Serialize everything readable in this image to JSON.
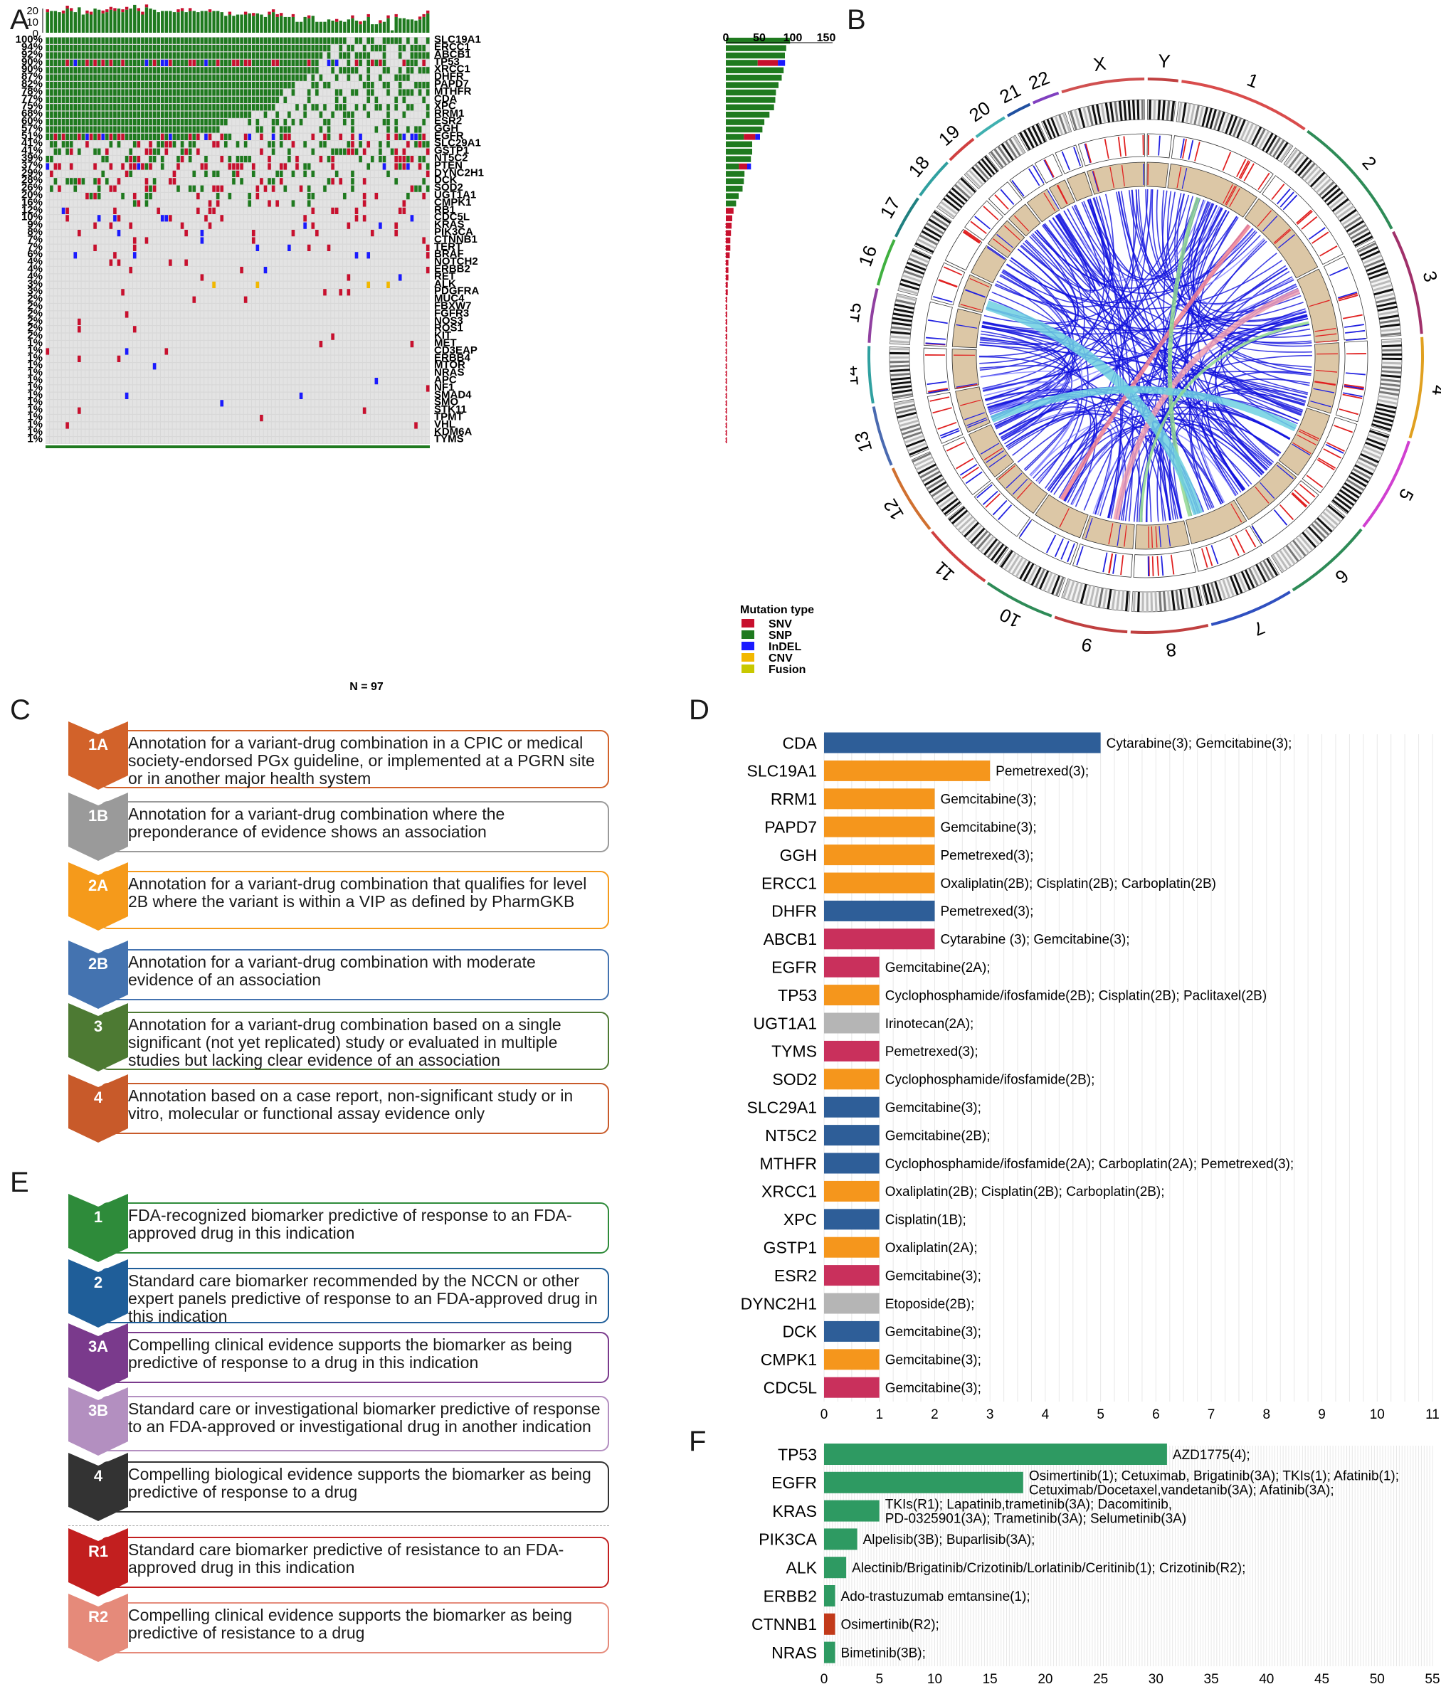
{
  "panels": {
    "A": "A",
    "B": "B",
    "C": "C",
    "D": "D",
    "E": "E",
    "F": "F"
  },
  "panelA": {
    "genes": [
      "SLC19A1",
      "ERCC1",
      "ABCB1",
      "TP53",
      "XRCC1",
      "DHFR",
      "PAPD7",
      "MTHFR",
      "CDA",
      "XPC",
      "RRM1",
      "ESR2",
      "GGH",
      "EGFR",
      "SLC29A1",
      "GSTP1",
      "NT5C2",
      "PTEN",
      "DYNC2H1",
      "DCK",
      "SOD2",
      "UGT1A1",
      "CMPK1",
      "RB1",
      "CDC5L",
      "KRAS",
      "PIK3CA",
      "CTNNB1",
      "TERT",
      "BRAF",
      "NOTCH2",
      "ERBB2",
      "RET",
      "ALK",
      "PDGFRA",
      "MUC4",
      "FBXW7",
      "FGFR3",
      "NOS3",
      "ROS1",
      "KIT",
      "MET",
      "CD3EAP",
      "ERBB4",
      "MTOR",
      "NRAS",
      "APC",
      "NF1",
      "SMAD4",
      "SMO",
      "STK11",
      "TPMT",
      "VHL",
      "KDM6A",
      "TYMS"
    ],
    "percents": [
      "100%",
      "94%",
      "92%",
      "90%",
      "90%",
      "87%",
      "82%",
      "78%",
      "77%",
      "75%",
      "68%",
      "60%",
      "57%",
      "51%",
      "41%",
      "41%",
      "39%",
      "37%",
      "29%",
      "28%",
      "26%",
      "20%",
      "16%",
      "12%",
      "10%",
      "9%",
      "8%",
      "7%",
      "7%",
      "6%",
      "4%",
      "4%",
      "4%",
      "3%",
      "3%",
      "2%",
      "2%",
      "2%",
      "2%",
      "2%",
      "2%",
      "1%",
      "1%",
      "1%",
      "1%",
      "1%",
      "1%",
      "1%",
      "1%",
      "1%",
      "1%",
      "1%",
      "1%",
      "1%",
      "1%"
    ],
    "top_ticks": [
      "20",
      "10",
      "0"
    ],
    "right_ticks": [
      "0",
      "50",
      "100",
      "150"
    ],
    "n_label": "N = 97",
    "legend_title": "Mutation type",
    "legend": [
      {
        "label": "SNV",
        "color": "#c8102e"
      },
      {
        "label": "SNP",
        "color": "#1f7a1f"
      },
      {
        "label": "InDEL",
        "color": "#1a1aff"
      },
      {
        "label": "CNV",
        "color": "#f2b800"
      },
      {
        "label": "Fusion",
        "color": "#c8c800"
      }
    ]
  },
  "panelB": {
    "chromosomes": [
      "1",
      "2",
      "3",
      "4",
      "5",
      "6",
      "7",
      "8",
      "9",
      "10",
      "11",
      "12",
      "13",
      "14",
      "15",
      "16",
      "17",
      "18",
      "19",
      "20",
      "21",
      "22",
      "X",
      "Y"
    ]
  },
  "panelC": {
    "levels": [
      {
        "badge": "1A",
        "color": "#d2622a",
        "text": "Annotation for a variant-drug combination in a CPIC or medical society-endorsed PGx guideline, or implemented at a PGRN site or in another major health system",
        "border": "#d2622a"
      },
      {
        "badge": "1B",
        "color": "#9a9a9a",
        "text": "Annotation for a variant-drug combination where the preponderance of evidence shows an association",
        "border": "#9a9a9a"
      },
      {
        "badge": "2A",
        "color": "#f59a1b",
        "text": "Annotation for a variant-drug combination that qualifies for level 2B where the variant is within a VIP as defined by PharmGKB",
        "border": "#f59a1b"
      },
      {
        "badge": "2B",
        "color": "#4473b0",
        "text": "Annotation for a variant-drug combination with moderate evidence of an association",
        "border": "#4473b0"
      },
      {
        "badge": "3",
        "color": "#4d7a33",
        "text": "Annotation for a variant-drug combination based on a single significant (not yet replicated) study or evaluated in multiple studies but lacking clear evidence of an association",
        "border": "#4d7a33"
      },
      {
        "badge": "4",
        "color": "#c85a2a",
        "text": "Annotation based on a case report, non-significant study or in vitro, molecular or functional assay evidence only",
        "border": "#c85a2a"
      }
    ]
  },
  "panelE": {
    "levels": [
      {
        "badge": "1",
        "color": "#2e8b3a",
        "text": "FDA-recognized biomarker predictive of response to an FDA-approved drug in this indication",
        "border": "#2e8b3a"
      },
      {
        "badge": "2",
        "color": "#1f5e99",
        "text": "Standard care biomarker recommended by the NCCN or other expert panels predictive of response to an FDA-approved drug in this indication",
        "border": "#1f5e99"
      },
      {
        "badge": "3A",
        "color": "#7a3a8c",
        "text": "Compelling clinical evidence supports the biomarker as being predictive of response to a drug in this indication",
        "border": "#7a3a8c"
      },
      {
        "badge": "3B",
        "color": "#b38fc0",
        "text": "Standard care or investigational biomarker predictive of response to an FDA-approved or investigational drug in another indication",
        "border": "#b38fc0"
      },
      {
        "badge": "4",
        "color": "#333333",
        "text": "Compelling biological evidence supports the biomarker as being predictive of response to a drug",
        "border": "#333333"
      },
      {
        "badge": "R1",
        "color": "#c21f1f",
        "text": "Standard care biomarker predictive of resistance to an FDA-approved drug in this indication",
        "border": "#c21f1f"
      },
      {
        "badge": "R2",
        "color": "#e58a7a",
        "text": "Compelling clinical evidence supports the biomarker as being predictive of resistance to a drug",
        "border": "#e58a7a"
      }
    ]
  },
  "chart_data": [
    {
      "type": "bar",
      "id": "D",
      "orientation": "horizontal",
      "categories": [
        "CDA",
        "SLC19A1",
        "RRM1",
        "PAPD7",
        "GGH",
        "ERCC1",
        "DHFR",
        "ABCB1",
        "EGFR",
        "TP53",
        "UGT1A1",
        "TYMS",
        "SOD2",
        "SLC29A1",
        "NT5C2",
        "MTHFR",
        "XRCC1",
        "XPC",
        "GSTP1",
        "ESR2",
        "DYNC2H1",
        "DCK",
        "CMPK1",
        "CDC5L"
      ],
      "values": [
        5,
        3,
        2,
        2,
        2,
        2,
        2,
        2,
        1,
        1,
        1,
        1,
        1,
        1,
        1,
        1,
        1,
        1,
        1,
        1,
        1,
        1,
        1,
        1
      ],
      "colors": [
        "#2e5e98",
        "#f5961c",
        "#f5961c",
        "#f5961c",
        "#f5961c",
        "#f5961c",
        "#2e5e98",
        "#c9305c",
        "#c9305c",
        "#f5961c",
        "#b5b5b5",
        "#c9305c",
        "#f5961c",
        "#2e5e98",
        "#2e5e98",
        "#2e5e98",
        "#f5961c",
        "#2e5e98",
        "#f5961c",
        "#c9305c",
        "#b5b5b5",
        "#2e5e98",
        "#f5961c",
        "#c9305c"
      ],
      "annotations": [
        "Cytarabine(3); Gemcitabine(3);",
        "Pemetrexed(3);",
        "Gemcitabine(3);",
        "Gemcitabine(3);",
        "Pemetrexed(3);",
        "Oxaliplatin(2B); Cisplatin(2B); Carboplatin(2B)",
        "Pemetrexed(3);",
        "Cytarabine (3); Gemcitabine(3);",
        "Gemcitabine(2A);",
        "Cyclophosphamide/ifosfamide(2B); Cisplatin(2B); Paclitaxel(2B)",
        "Irinotecan(2A);",
        "Pemetrexed(3);",
        "Cyclophosphamide/ifosfamide(2B);",
        "Gemcitabine(3);",
        "Gemcitabine(2B);",
        "Cyclophosphamide/ifosfamide(2A); Carboplatin(2A); Pemetrexed(3);",
        "Oxaliplatin(2B); Cisplatin(2B); Carboplatin(2B);",
        "Cisplatin(1B);",
        "Oxaliplatin(2A);",
        "Gemcitabine(3);",
        "Etoposide(2B);",
        "Gemcitabine(3);",
        "Gemcitabine(3);",
        "Gemcitabine(3);"
      ],
      "xlim": [
        0,
        11
      ],
      "xticks": [
        "0",
        "1",
        "2",
        "3",
        "4",
        "5",
        "6",
        "7",
        "8",
        "9",
        "10",
        "11"
      ]
    },
    {
      "type": "bar",
      "id": "F",
      "orientation": "horizontal",
      "categories": [
        "TP53",
        "EGFR",
        "KRAS",
        "PIK3CA",
        "ALK",
        "ERBB2",
        "CTNNB1",
        "NRAS"
      ],
      "values": [
        31,
        18,
        5,
        3,
        2,
        1,
        1,
        1
      ],
      "colors": [
        "#2e9a62",
        "#2e9a62",
        "#2e9a62",
        "#2e9a62",
        "#2e9a62",
        "#2e9a62",
        "#c23a1a",
        "#2e9a62"
      ],
      "annotations": [
        [
          "AZD1775(4);"
        ],
        [
          "Osimertinib(1); Cetuximab, Brigatinib(3A); TKIs(1); Afatinib(1);",
          "Cetuximab/Docetaxel,vandetanib(3A); Afatinib(3A);"
        ],
        [
          "TKIs(R1); Lapatinib,trametinib(3A); Dacomitinib,",
          "PD-0325901(3A); Trametinib(3A); Selumetinib(3A)"
        ],
        [
          "Alpelisib(3B); Buparlisib(3A);"
        ],
        [
          "Alectinib/Brigatinib/Crizotinib/Lorlatinib/Ceritinib(1); Crizotinib(R2);"
        ],
        [
          "Ado-trastuzumab emtansine(1);"
        ],
        [
          "Osimertinib(R2);"
        ],
        [
          "Bimetinib(3B);"
        ]
      ],
      "xlim": [
        0,
        55
      ],
      "xticks": [
        "0",
        "5",
        "10",
        "15",
        "20",
        "25",
        "30",
        "35",
        "40",
        "45",
        "50",
        "55"
      ]
    }
  ]
}
